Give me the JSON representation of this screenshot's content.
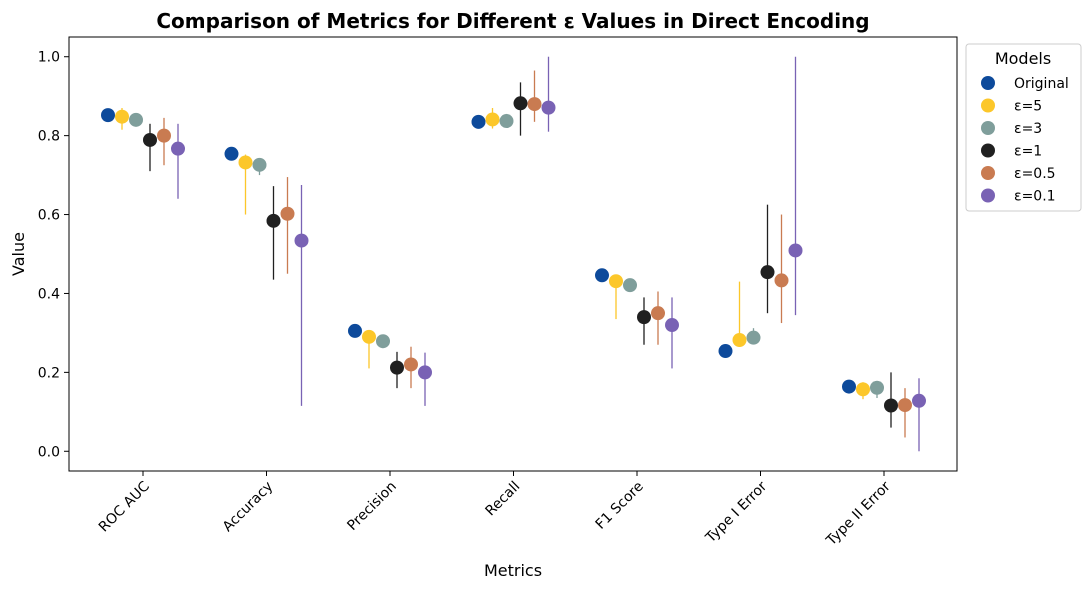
{
  "chart_data": {
    "type": "scatter",
    "title": "Comparison of Metrics for Different ε Values in Direct Encoding",
    "xlabel": "Metrics",
    "ylabel": "Value",
    "ylim": [
      -0.05,
      1.05
    ],
    "yticks": [
      "0.0",
      "0.2",
      "0.4",
      "0.6",
      "0.8",
      "1.0"
    ],
    "grid": false,
    "legend": {
      "title": "Models",
      "placement": "outside-top-right"
    },
    "categories": [
      "ROC AUC",
      "Accuracy",
      "Precision",
      "Recall",
      "F1 Score",
      "Type I Error",
      "Type II Error"
    ],
    "series": [
      {
        "name": "Original",
        "color": "#0d4a9b",
        "values": [
          0.852,
          0.754,
          0.305,
          0.835,
          0.446,
          0.254,
          0.164
        ],
        "err_low": [
          0.852,
          0.754,
          0.305,
          0.835,
          0.446,
          0.254,
          0.164
        ],
        "err_high": [
          0.852,
          0.754,
          0.305,
          0.835,
          0.446,
          0.254,
          0.164
        ]
      },
      {
        "name": "ε=5",
        "color": "#fcc72a",
        "values": [
          0.848,
          0.732,
          0.29,
          0.841,
          0.431,
          0.282,
          0.157
        ],
        "err_low": [
          0.815,
          0.6,
          0.21,
          0.818,
          0.335,
          0.265,
          0.132
        ],
        "err_high": [
          0.87,
          0.752,
          0.3,
          0.87,
          0.445,
          0.43,
          0.175
        ]
      },
      {
        "name": "ε=3",
        "color": "#7f9e9b",
        "values": [
          0.84,
          0.726,
          0.279,
          0.837,
          0.421,
          0.288,
          0.161
        ],
        "err_low": [
          0.83,
          0.7,
          0.272,
          0.822,
          0.41,
          0.272,
          0.135
        ],
        "err_high": [
          0.852,
          0.735,
          0.29,
          0.855,
          0.432,
          0.312,
          0.175
        ]
      },
      {
        "name": "ε=1",
        "color": "#202020",
        "values": [
          0.789,
          0.584,
          0.212,
          0.882,
          0.34,
          0.454,
          0.116
        ],
        "err_low": [
          0.71,
          0.435,
          0.16,
          0.8,
          0.27,
          0.35,
          0.06
        ],
        "err_high": [
          0.83,
          0.672,
          0.252,
          0.935,
          0.39,
          0.625,
          0.2
        ]
      },
      {
        "name": "ε=0.5",
        "color": "#c97b51",
        "values": [
          0.8,
          0.602,
          0.22,
          0.88,
          0.35,
          0.433,
          0.117
        ],
        "err_low": [
          0.725,
          0.45,
          0.16,
          0.835,
          0.27,
          0.325,
          0.035
        ],
        "err_high": [
          0.845,
          0.695,
          0.265,
          0.965,
          0.405,
          0.6,
          0.16
        ]
      },
      {
        "name": "ε=0.1",
        "color": "#7962b4",
        "values": [
          0.767,
          0.534,
          0.2,
          0.871,
          0.32,
          0.509,
          0.128
        ],
        "err_low": [
          0.64,
          0.115,
          0.115,
          0.81,
          0.21,
          0.345,
          0.0
        ],
        "err_high": [
          0.83,
          0.675,
          0.25,
          1.0,
          0.39,
          1.0,
          0.185
        ]
      }
    ]
  }
}
